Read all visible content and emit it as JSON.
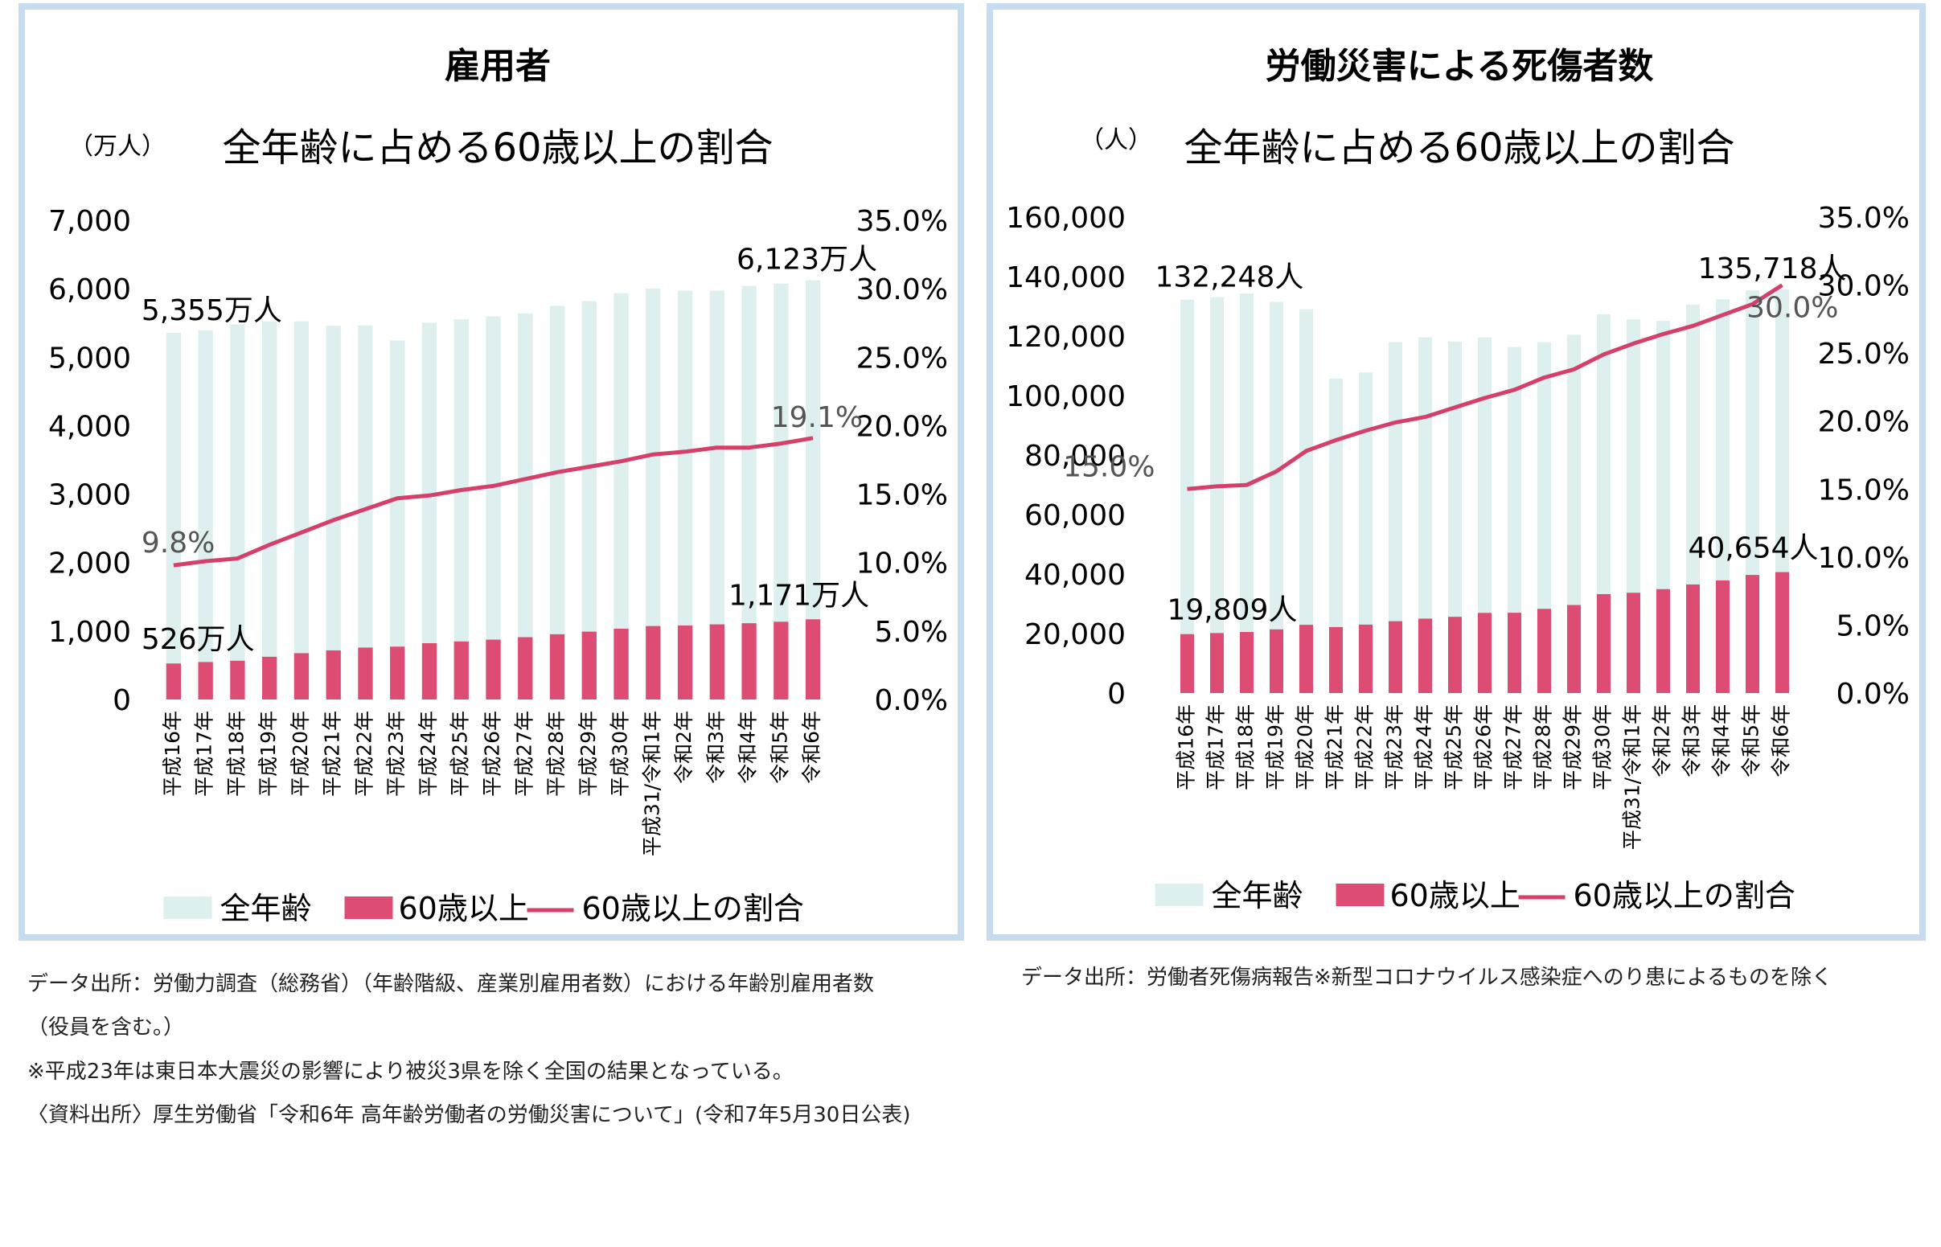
{
  "colors": {
    "all_age": "#ddefef",
    "age60": "#dd4c72",
    "ratio": "#d5406a",
    "border": "#c7dbee",
    "ann_gray": "#555555"
  },
  "legend": {
    "all_age": "全年齢",
    "age60": "60歳以上",
    "ratio": "60歳以上の割合"
  },
  "chart_data": [
    {
      "type": "bar",
      "title": "雇用者",
      "subtitle": "全年齢に占める60歳以上の割合",
      "unit_label": "（万人）",
      "categories": [
        "平成16年",
        "平成17年",
        "平成18年",
        "平成19年",
        "平成20年",
        "平成21年",
        "平成22年",
        "平成23年",
        "平成24年",
        "平成25年",
        "平成26年",
        "平成27年",
        "平成28年",
        "平成29年",
        "平成30年",
        "平成31/令和1年",
        "令和2年",
        "令和3年",
        "令和4年",
        "令和5年",
        "令和6年"
      ],
      "series": [
        {
          "name": "全年齢",
          "values": [
            5355,
            5393,
            5478,
            5523,
            5524,
            5460,
            5463,
            5244,
            5504,
            5553,
            5596,
            5640,
            5750,
            5819,
            5936,
            6004,
            5973,
            5973,
            6041,
            6076,
            6123
          ]
        },
        {
          "name": "60歳以上",
          "values": [
            526,
            547,
            566,
            624,
            676,
            717,
            758,
            772,
            822,
            848,
            874,
            910,
            953,
            991,
            1034,
            1073,
            1081,
            1097,
            1114,
            1136,
            1171
          ]
        },
        {
          "name": "60歳以上の割合",
          "axis": "right",
          "values": [
            9.8,
            10.1,
            10.3,
            11.3,
            12.2,
            13.1,
            13.9,
            14.7,
            14.9,
            15.3,
            15.6,
            16.1,
            16.6,
            17.0,
            17.4,
            17.9,
            18.1,
            18.4,
            18.4,
            18.7,
            19.1
          ]
        }
      ],
      "y_left": {
        "min": 0,
        "max": 7000,
        "ticks": [
          "0",
          "1,000",
          "2,000",
          "3,000",
          "4,000",
          "5,000",
          "6,000",
          "7,000"
        ]
      },
      "y_right": {
        "min": 0,
        "max": 35,
        "ticks": [
          "0.0%",
          "5.0%",
          "10.0%",
          "15.0%",
          "20.0%",
          "25.0%",
          "30.0%",
          "35.0%"
        ]
      },
      "annotations": {
        "first_total": "5,355万人",
        "last_total": "6,123万人",
        "first_60": "526万人",
        "last_60": "1,171万人",
        "first_ratio": "9.8%",
        "last_ratio": "19.1%"
      }
    },
    {
      "type": "bar",
      "title": "労働災害による死傷者数",
      "subtitle": "全年齢に占める60歳以上の割合",
      "unit_label": "（人）",
      "categories": [
        "平成16年",
        "平成17年",
        "平成18年",
        "平成19年",
        "平成20年",
        "平成21年",
        "平成22年",
        "平成23年",
        "平成24年",
        "平成25年",
        "平成26年",
        "平成27年",
        "平成28年",
        "平成29年",
        "平成30年",
        "平成31/令和1年",
        "令和2年",
        "令和3年",
        "令和4年",
        "令和5年",
        "令和6年"
      ],
      "series": [
        {
          "name": "全年齢",
          "values": [
            132248,
            133050,
            134298,
            131478,
            129026,
            105718,
            107759,
            117958,
            119576,
            118157,
            119535,
            116311,
            117910,
            120460,
            127329,
            125611,
            125115,
            130586,
            132355,
            135371,
            135718
          ]
        },
        {
          "name": "60歳以上",
          "values": [
            19809,
            20166,
            20526,
            21398,
            22950,
            22183,
            23002,
            24151,
            25011,
            25624,
            26949,
            26998,
            28311,
            29592,
            33246,
            33715,
            34928,
            36500,
            37872,
            39702,
            40654
          ]
        },
        {
          "name": "60歳以上の割合",
          "axis": "right",
          "values": [
            15.0,
            15.2,
            15.3,
            16.3,
            17.8,
            18.6,
            19.3,
            19.9,
            20.3,
            21.0,
            21.7,
            22.3,
            23.2,
            23.8,
            24.9,
            25.7,
            26.4,
            27.0,
            27.8,
            28.6,
            30.0
          ]
        }
      ],
      "y_left": {
        "min": 0,
        "max": 160000,
        "ticks": [
          "0",
          "20,000",
          "40,000",
          "60,000",
          "80,000",
          "100,000",
          "120,000",
          "140,000",
          "160,000"
        ]
      },
      "y_right": {
        "min": 0,
        "max": 35,
        "ticks": [
          "0.0%",
          "5.0%",
          "10.0%",
          "15.0%",
          "20.0%",
          "25.0%",
          "30.0%",
          "35.0%"
        ]
      },
      "annotations": {
        "first_total": "132,248人",
        "last_total": "135,718人",
        "first_60": "19,809人",
        "last_60": "40,654人",
        "first_ratio": "15.0%",
        "last_ratio": "30.0%"
      }
    }
  ],
  "footer_left": [
    "データ出所：労働力調査（総務省）（年齢階級、産業別雇用者数）における年齢別雇用者数",
    "（役員を含む。）",
    "※平成23年は東日本大震災の影響により被災3県を除く全国の結果となっている。",
    "〈資料出所〉厚生労働省「令和6年 高年齢労働者の労働災害について」(令和7年5月30日公表)"
  ],
  "footer_right": "データ出所：労働者死傷病報告※新型コロナウイルス感染症へのり患によるものを除く"
}
